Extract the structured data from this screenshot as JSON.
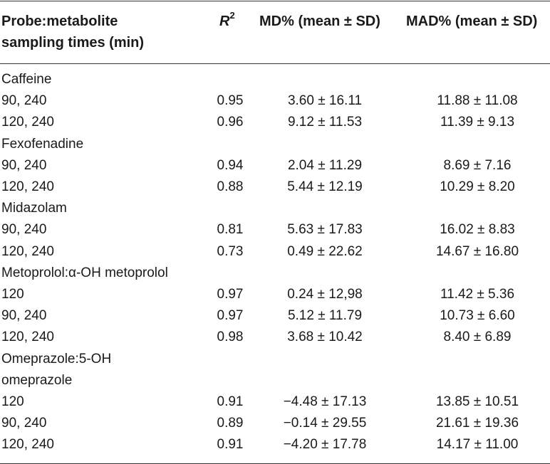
{
  "header": {
    "col1_line1": "Probe:metabolite",
    "col1_line2": "sampling times (min)",
    "col2_base": "R",
    "col2_sup": "2",
    "col3": "MD% (mean ± SD)",
    "col4": "MAD% (mean ± SD)"
  },
  "rows": [
    {
      "label": "Caffeine",
      "r2": "",
      "md": "",
      "mad": ""
    },
    {
      "label": "90, 240",
      "r2": "0.95",
      "md": "3.60 ± 16.11",
      "mad": "11.88 ± 11.08"
    },
    {
      "label": "120, 240",
      "r2": "0.96",
      "md": "9.12 ± 11.53",
      "mad": "11.39 ± 9.13"
    },
    {
      "label": "Fexofenadine",
      "r2": "",
      "md": "",
      "mad": ""
    },
    {
      "label": "90, 240",
      "r2": "0.94",
      "md": "2.04 ± 11.29",
      "mad": "8.69 ± 7.16"
    },
    {
      "label": "120, 240",
      "r2": "0.88",
      "md": "5.44 ± 12.19",
      "mad": "10.29 ± 8.20"
    },
    {
      "label": "Midazolam",
      "r2": "",
      "md": "",
      "mad": ""
    },
    {
      "label": "90, 240",
      "r2": "0.81",
      "md": "5.63 ± 17.83",
      "mad": "16.02 ± 8.83"
    },
    {
      "label": "120, 240",
      "r2": "0.73",
      "md": "0.49 ± 22.62",
      "mad": "14.67 ± 16.80"
    },
    {
      "label": "Metoprolol:α-OH metoprolol",
      "r2": "",
      "md": "",
      "mad": ""
    },
    {
      "label": "120",
      "r2": "0.97",
      "md": "0.24 ± 12,98",
      "mad": "11.42 ± 5.36"
    },
    {
      "label": "90, 240",
      "r2": "0.97",
      "md": "5.12 ± 11.79",
      "mad": "10.73 ± 6.60"
    },
    {
      "label": "120, 240",
      "r2": "0.98",
      "md": "3.68 ± 10.42",
      "mad": "8.40 ± 6.89"
    },
    {
      "label": "Omeprazole:5-OH",
      "r2": "",
      "md": "",
      "mad": ""
    },
    {
      "label": "omeprazole",
      "r2": "",
      "md": "",
      "mad": ""
    },
    {
      "label": "120",
      "r2": "0.91",
      "md": "−4.48 ± 17.13",
      "mad": "13.85 ± 10.51"
    },
    {
      "label": "90, 240",
      "r2": "0.89",
      "md": "−0.14 ± 29.55",
      "mad": "21.61 ± 19.36"
    },
    {
      "label": "120, 240",
      "r2": "0.91",
      "md": "−4.20 ± 17.78",
      "mad": "14.17 ± 11.00"
    }
  ]
}
